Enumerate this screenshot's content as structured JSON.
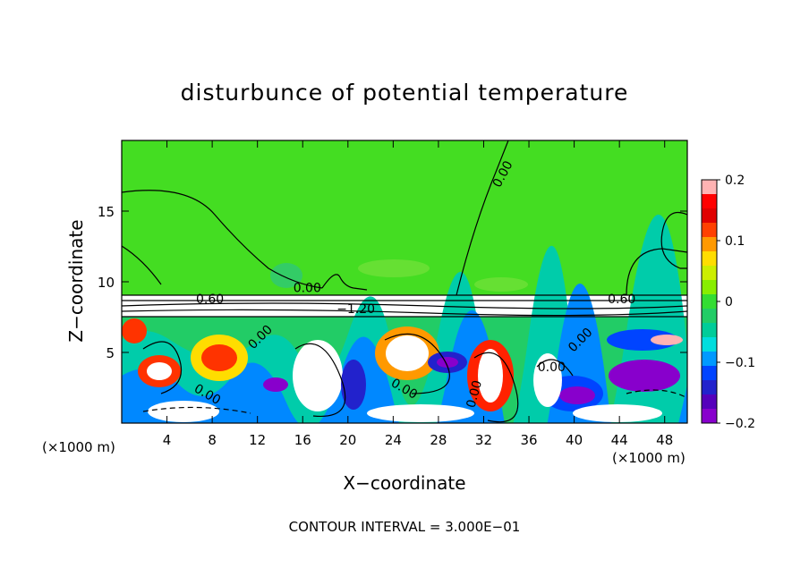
{
  "chart_data": {
    "type": "heatmap",
    "title": "disturbunce of potential temperature",
    "xlabel": "X−coordinate",
    "ylabel": "Z−coordinate",
    "x_unit": "(×1000 m)",
    "z_unit": "(×1000 m)",
    "xlim": [
      0,
      50
    ],
    "ylim": [
      0,
      20
    ],
    "x_ticks": [
      4,
      8,
      12,
      16,
      20,
      24,
      28,
      32,
      36,
      40,
      44,
      48
    ],
    "y_ticks": [
      5,
      10,
      15
    ],
    "footer": "CONTOUR INTERVAL = 3.000E−01",
    "colorbar": {
      "range": [
        -0.2,
        0.2
      ],
      "tick_labels": [
        "0.2",
        "0.1",
        "0",
        "−0.1",
        "−0.2"
      ],
      "tick_values": [
        0.2,
        0.1,
        0,
        -0.1,
        -0.2
      ],
      "colors": [
        "#ffb3b3",
        "#ff0000",
        "#e00000",
        "#ff4000",
        "#ff9900",
        "#ffdd00",
        "#ccee00",
        "#88ee00",
        "#33dd33",
        "#22cc66",
        "#00cc99",
        "#00dddd",
        "#0099ff",
        "#0044ff",
        "#2222cc",
        "#5500bb",
        "#8800cc"
      ]
    },
    "contour_labels": [
      {
        "text": "0.00",
        "x": 34.0,
        "z": 17.8
      },
      {
        "text": "0.00",
        "x": 16.4,
        "z": 9.6
      },
      {
        "text": "0.60",
        "x": 7.8,
        "z": 8.8
      },
      {
        "text": "−1.20",
        "x": 20.7,
        "z": 8.1
      },
      {
        "text": "0.60",
        "x": 44.2,
        "z": 8.8
      },
      {
        "text": "0.00",
        "x": 12.5,
        "z": 6.2
      },
      {
        "text": "0.00",
        "x": 40.8,
        "z": 6.0
      },
      {
        "text": "0.00",
        "x": 38.0,
        "z": 4.0
      },
      {
        "text": "0.00",
        "x": 7.4,
        "z": 2.1
      },
      {
        "text": "0.00",
        "x": 24.8,
        "z": 2.5
      },
      {
        "text": "0.00",
        "x": 31.5,
        "z": 2.3
      }
    ]
  }
}
